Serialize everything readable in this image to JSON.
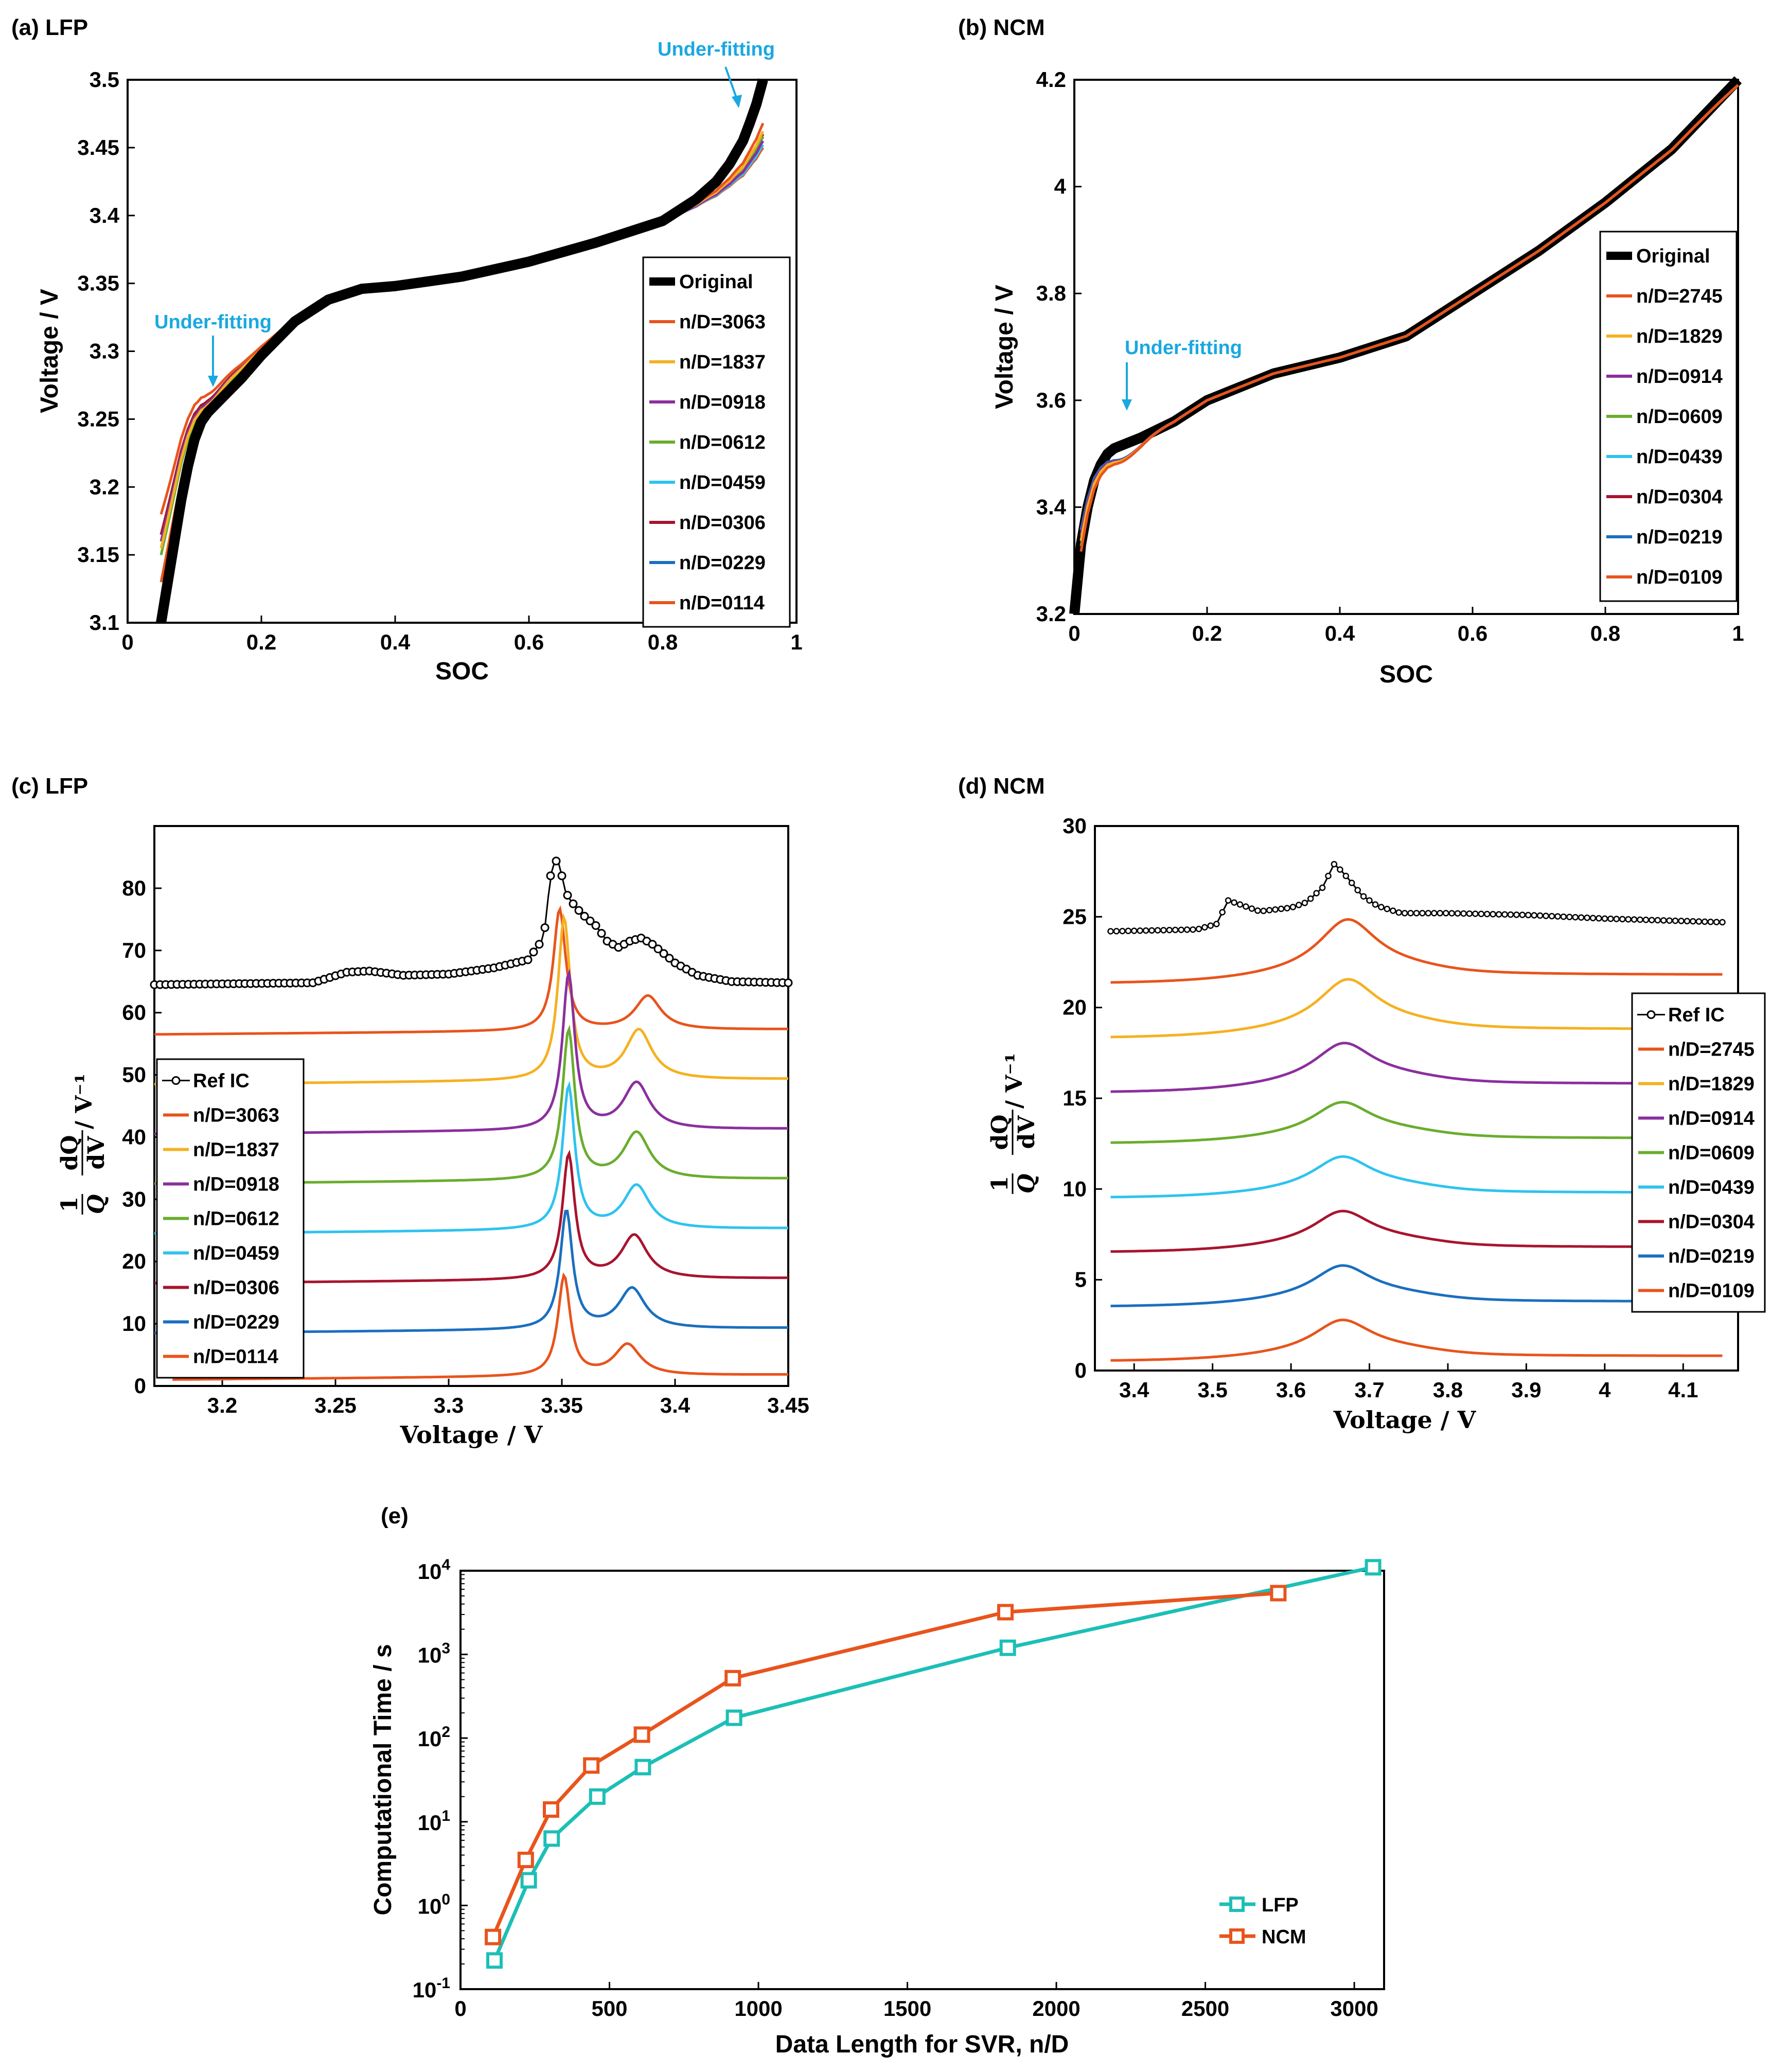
{
  "colors": {
    "original": "#000000",
    "orange": "#e8541c",
    "yellow": "#f5b120",
    "purple": "#8b2f9e",
    "green": "#6aad2e",
    "cyan": "#2ec3ef",
    "darkred": "#a8142e",
    "blue": "#1b6fbf",
    "annotation": "#1aa8e0",
    "lfp_e": "#1cbfb6",
    "ncm_e": "#e8541c"
  },
  "chart_data": [
    {
      "id": "a",
      "type": "line",
      "panel_label": "(a) LFP",
      "xlabel": "SOC",
      "ylabel": "Voltage / V",
      "xlim": [
        0,
        1
      ],
      "ylim": [
        3.1,
        3.5
      ],
      "xticks": [
        "0",
        "0.2",
        "0.4",
        "0.6",
        "0.8",
        "1"
      ],
      "yticks": [
        "3.1",
        "3.15",
        "3.2",
        "3.25",
        "3.3",
        "3.35",
        "3.4",
        "3.45",
        "3.5"
      ],
      "legend": [
        "Original",
        "n/D=3063",
        "n/D=1837",
        "n/D=0918",
        "n/D=0612",
        "n/D=0459",
        "n/D=0306",
        "n/D=0229",
        "n/D=0114"
      ],
      "annotations": [
        "Under-fitting",
        "Under-fitting"
      ],
      "original": {
        "x": [
          0.05,
          0.06,
          0.07,
          0.08,
          0.09,
          0.1,
          0.11,
          0.12,
          0.13,
          0.15,
          0.17,
          0.2,
          0.25,
          0.3,
          0.35,
          0.4,
          0.5,
          0.6,
          0.7,
          0.8,
          0.85,
          0.88,
          0.9,
          0.92,
          0.93,
          0.94,
          0.95
        ],
        "y": [
          3.1,
          3.13,
          3.16,
          3.19,
          3.215,
          3.235,
          3.248,
          3.255,
          3.26,
          3.27,
          3.28,
          3.297,
          3.322,
          3.338,
          3.346,
          3.348,
          3.355,
          3.366,
          3.38,
          3.396,
          3.412,
          3.425,
          3.438,
          3.455,
          3.468,
          3.482,
          3.5
        ]
      },
      "fit_start_y": [
        3.18,
        3.155,
        3.16,
        3.15,
        3.155,
        3.165,
        3.165,
        3.13
      ],
      "fit_end_y": [
        3.468,
        3.462,
        3.455,
        3.458,
        3.452,
        3.46,
        3.458,
        3.45
      ]
    },
    {
      "id": "b",
      "type": "line",
      "panel_label": "(b) NCM",
      "xlabel": "SOC",
      "ylabel": "Voltage / V",
      "xlim": [
        0,
        1
      ],
      "ylim": [
        3.2,
        4.2
      ],
      "xticks": [
        "0",
        "0.2",
        "0.4",
        "0.6",
        "0.8",
        "1"
      ],
      "yticks": [
        "3.2",
        "3.4",
        "3.6",
        "3.8",
        "4",
        "4.2"
      ],
      "legend": [
        "Original",
        "n/D=2745",
        "n/D=1829",
        "n/D=0914",
        "n/D=0609",
        "n/D=0439",
        "n/D=0304",
        "n/D=0219",
        "n/D=0109"
      ],
      "annotations": [
        "Under-fitting"
      ],
      "original": {
        "x": [
          0.0,
          0.01,
          0.02,
          0.03,
          0.04,
          0.05,
          0.06,
          0.08,
          0.1,
          0.15,
          0.2,
          0.3,
          0.4,
          0.5,
          0.6,
          0.7,
          0.8,
          0.9,
          1.0
        ],
        "y": [
          3.2,
          3.33,
          3.4,
          3.45,
          3.48,
          3.5,
          3.51,
          3.52,
          3.53,
          3.56,
          3.6,
          3.65,
          3.68,
          3.72,
          3.8,
          3.88,
          3.97,
          4.07,
          4.2
        ]
      },
      "fit_start_y": [
        3.32,
        3.34,
        3.35,
        3.33,
        3.34,
        3.35,
        3.36,
        3.36
      ]
    },
    {
      "id": "c",
      "type": "line",
      "panel_label": "(c) LFP",
      "xlabel": "Voltage / V",
      "ylabel": "1/Q dQ/dV / V-1",
      "xlim": [
        3.17,
        3.45
      ],
      "ylim": [
        0,
        90
      ],
      "xticks": [
        "3.2",
        "3.25",
        "3.3",
        "3.35",
        "3.4",
        "3.45"
      ],
      "yticks": [
        "0",
        "10",
        "20",
        "30",
        "40",
        "50",
        "60",
        "70",
        "80"
      ],
      "legend": [
        "Ref IC",
        "n/D=3063",
        "n/D=1837",
        "n/D=0918",
        "n/D=0612",
        "n/D=0459",
        "n/D=0306",
        "n/D=0229",
        "n/D=0114"
      ],
      "ref_ic": {
        "x": [
          3.17,
          3.24,
          3.255,
          3.265,
          3.28,
          3.3,
          3.32,
          3.335,
          3.342,
          3.345,
          3.347,
          3.349,
          3.351,
          3.353,
          3.356,
          3.36,
          3.365,
          3.37,
          3.375,
          3.38,
          3.385,
          3.39,
          3.4,
          3.41,
          3.425,
          3.45
        ],
        "y": [
          64.5,
          64.8,
          66.5,
          66.7,
          66,
          66.2,
          67.2,
          68.5,
          72,
          82,
          84.5,
          84,
          80,
          78.5,
          77,
          75.5,
          74,
          71.5,
          70.5,
          71.5,
          72,
          71,
          68,
          66,
          65,
          64.8
        ]
      },
      "offsets": [
        56.5,
        48.5,
        40.5,
        32.5,
        24.5,
        16.5,
        8.5,
        1
      ],
      "peak_x": [
        3.349,
        3.351,
        3.353,
        3.353,
        3.353,
        3.353,
        3.352,
        3.351
      ],
      "peak_h": [
        19.5,
        26,
        25,
        24,
        23,
        20,
        19,
        16
      ],
      "peak2_x": [
        3.388,
        3.384,
        3.383,
        3.383,
        3.383,
        3.382,
        3.381,
        3.379
      ],
      "peak2_h": [
        5.5,
        8,
        7.5,
        7.5,
        7,
        7,
        6.5,
        5
      ],
      "x_start": [
        3.17,
        3.17,
        3.17,
        3.17,
        3.17,
        3.17,
        3.17,
        3.178
      ]
    },
    {
      "id": "d",
      "type": "line",
      "panel_label": "(d) NCM",
      "xlabel": "Voltage / V",
      "ylabel": "1/Q dQ/dV / V-1",
      "xlim": [
        3.35,
        4.17
      ],
      "ylim": [
        0,
        30
      ],
      "xticks": [
        "3.4",
        "3.5",
        "3.6",
        "3.7",
        "3.8",
        "3.9",
        "4",
        "4.1"
      ],
      "yticks": [
        "0",
        "5",
        "10",
        "15",
        "20",
        "25",
        "30"
      ],
      "legend": [
        "Ref IC",
        "n/D=2745",
        "n/D=1829",
        "n/D=0914",
        "n/D=0609",
        "n/D=0439",
        "n/D=0304",
        "n/D=0219",
        "n/D=0109"
      ],
      "ref_ic": {
        "x": [
          3.37,
          3.48,
          3.505,
          3.52,
          3.54,
          3.56,
          3.58,
          3.6,
          3.62,
          3.64,
          3.655,
          3.665,
          3.675,
          3.69,
          3.71,
          3.74,
          3.8,
          3.9,
          4.0,
          4.15
        ],
        "y": [
          24.2,
          24.3,
          24.6,
          25.9,
          25.6,
          25.3,
          25.4,
          25.5,
          25.8,
          26.6,
          27.9,
          27.5,
          27,
          26.2,
          25.6,
          25.2,
          25.2,
          25.1,
          24.9,
          24.7
        ]
      },
      "offsets": [
        21.3,
        18.3,
        15.3,
        12.5,
        9.5,
        6.5,
        3.5,
        0.5
      ],
      "right_end": [
        21.8,
        18.8,
        15.8,
        12.8,
        9.8,
        6.8,
        3.8,
        0.8
      ],
      "peak_x": [
        3.672,
        3.672,
        3.667,
        3.665,
        3.665,
        3.665,
        3.665,
        3.665
      ],
      "peak_h": [
        4,
        3.7,
        3.2,
        2.9,
        2.9,
        2.9,
        2.9,
        2.9
      ]
    },
    {
      "id": "e",
      "type": "line",
      "panel_label": "(e)",
      "xlabel": "Data Length for SVR, n/D",
      "ylabel": "Computational Time / s",
      "yscale": "log",
      "xlim": [
        0,
        3100
      ],
      "ylim_exp": [
        -1,
        4
      ],
      "xticks": [
        "0",
        "500",
        "1000",
        "1500",
        "2000",
        "2500",
        "3000"
      ],
      "ytick_base": "10",
      "ytick_exps": [
        "-1",
        "0",
        "1",
        "2",
        "3",
        "4"
      ],
      "series": [
        {
          "name": "LFP",
          "x": [
            114,
            229,
            306,
            459,
            612,
            918,
            1837,
            3063
          ],
          "values": [
            0.22,
            2.0,
            6.3,
            20,
            45,
            175,
            1200,
            11000
          ]
        },
        {
          "name": "NCM",
          "x": [
            109,
            219,
            304,
            439,
            609,
            914,
            1829,
            2745
          ],
          "values": [
            0.42,
            3.5,
            14,
            47,
            110,
            520,
            3200,
            5400
          ]
        }
      ]
    }
  ]
}
